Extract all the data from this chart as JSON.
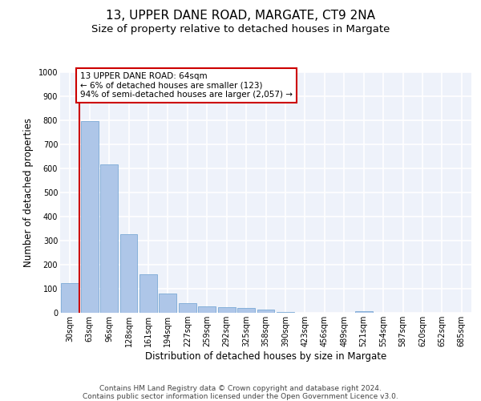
{
  "title_line1": "13, UPPER DANE ROAD, MARGATE, CT9 2NA",
  "title_line2": "Size of property relative to detached houses in Margate",
  "xlabel": "Distribution of detached houses by size in Margate",
  "ylabel": "Number of detached properties",
  "categories": [
    "30sqm",
    "63sqm",
    "96sqm",
    "128sqm",
    "161sqm",
    "194sqm",
    "227sqm",
    "259sqm",
    "292sqm",
    "325sqm",
    "358sqm",
    "390sqm",
    "423sqm",
    "456sqm",
    "489sqm",
    "521sqm",
    "554sqm",
    "587sqm",
    "620sqm",
    "652sqm",
    "685sqm"
  ],
  "values": [
    122,
    797,
    617,
    328,
    159,
    80,
    41,
    27,
    23,
    20,
    14,
    5,
    1,
    0,
    0,
    8,
    0,
    0,
    0,
    0,
    0
  ],
  "bar_color": "#aec6e8",
  "bar_edge_color": "#6a9fd0",
  "vline_color": "#cc0000",
  "vline_x": 0.5,
  "annotation_text": "13 UPPER DANE ROAD: 64sqm\n← 6% of detached houses are smaller (123)\n94% of semi-detached houses are larger (2,057) →",
  "annotation_box_facecolor": "#ffffff",
  "annotation_box_edgecolor": "#cc0000",
  "ylim": [
    0,
    1000
  ],
  "yticks": [
    0,
    100,
    200,
    300,
    400,
    500,
    600,
    700,
    800,
    900,
    1000
  ],
  "bg_color": "#eef2fa",
  "footer_text": "Contains HM Land Registry data © Crown copyright and database right 2024.\nContains public sector information licensed under the Open Government Licence v3.0.",
  "title_fontsize": 11,
  "subtitle_fontsize": 9.5,
  "ylabel_fontsize": 8.5,
  "xlabel_fontsize": 8.5,
  "tick_fontsize": 7,
  "annotation_fontsize": 7.5,
  "footer_fontsize": 6.5
}
